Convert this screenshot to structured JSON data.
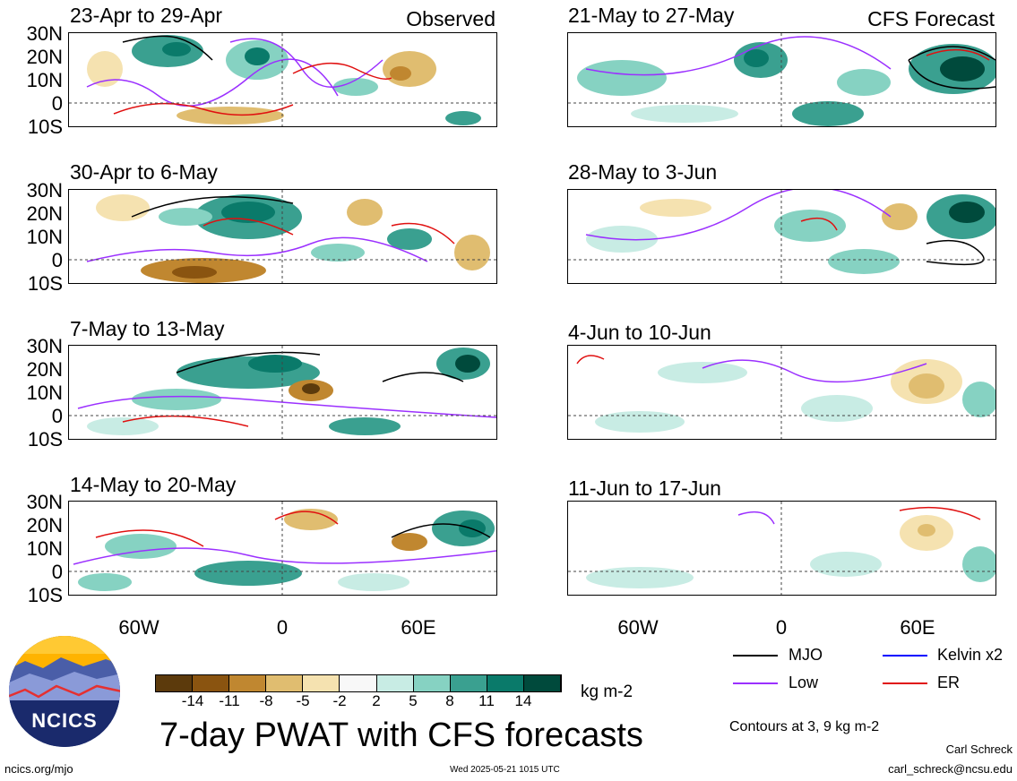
{
  "panels": {
    "observed": [
      {
        "title": "23-Apr to 29-Apr",
        "tag": "Observed"
      },
      {
        "title": "30-Apr to 6-May",
        "tag": ""
      },
      {
        "title": "7-May to 13-May",
        "tag": ""
      },
      {
        "title": "14-May to 20-May",
        "tag": ""
      }
    ],
    "forecast": [
      {
        "title": "21-May to 27-May",
        "tag": "CFS Forecast"
      },
      {
        "title": "28-May to 3-Jun",
        "tag": ""
      },
      {
        "title": "4-Jun to 10-Jun",
        "tag": ""
      },
      {
        "title": "11-Jun to 17-Jun",
        "tag": ""
      }
    ]
  },
  "axes": {
    "lat_ticks": [
      "30N",
      "20N",
      "10N",
      "0",
      "10S"
    ],
    "lon_ticks": [
      "60W",
      "0",
      "60E"
    ]
  },
  "colorbar": {
    "ticks": [
      "-14",
      "-11",
      "-8",
      "-5",
      "-2",
      "2",
      "5",
      "8",
      "11",
      "14"
    ],
    "colors": [
      "#5c3a0c",
      "#8a5410",
      "#c08730",
      "#e0bd70",
      "#f5e2b0",
      "#f8f8f8",
      "#c8ece4",
      "#86d2c2",
      "#3aa090",
      "#0a7a6a",
      "#004a3c"
    ],
    "units": "kg m-2"
  },
  "legend": {
    "items": [
      {
        "label": "MJO",
        "color": "#000000"
      },
      {
        "label": "Kelvin x2",
        "color": "#0000ff"
      },
      {
        "label": "Low",
        "color": "#9b30ff"
      },
      {
        "label": "ER",
        "color": "#e01010"
      }
    ],
    "contours_note": "Contours at 3, 9 kg m-2"
  },
  "logo": {
    "text": "NCICS"
  },
  "main_title": "7-day PWAT with CFS forecasts",
  "footer": {
    "url": "ncics.org/mjo",
    "timestamp": "Wed 2025-05-21 1015 UTC",
    "author": "Carl Schreck",
    "email": "carl_schreck@ncsu.edu"
  }
}
